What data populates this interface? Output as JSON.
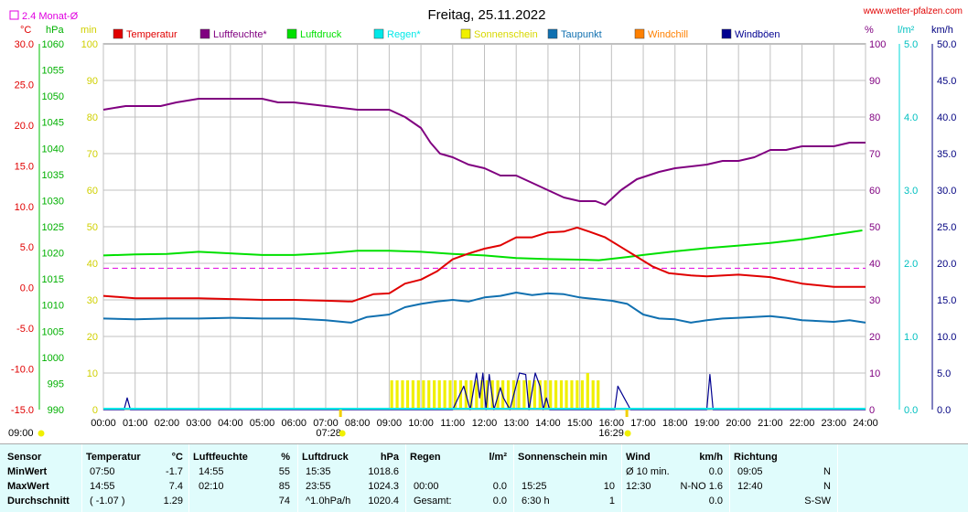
{
  "header": {
    "title": "Freitag, 25.11.2022",
    "website": "www.wetter-pfalzen.com",
    "monthly_avg_label": "2.4 Monat-Ø"
  },
  "colors": {
    "temperature": "#e00000",
    "humidity": "#800080",
    "pressure": "#00e000",
    "rain": "#00e8e8",
    "sunshine": "#f0f000",
    "dewpoint": "#1070b0",
    "windchill": "#ff8000",
    "gusts": "#000090",
    "monthly_avg": "#e000e0"
  },
  "chart_data": {
    "type": "line",
    "title": "Freitag, 25.11.2022",
    "x_tick_labels": [
      "00:00",
      "01:00",
      "02:00",
      "03:00",
      "04:00",
      "05:00",
      "06:00",
      "07:00",
      "08:00",
      "09:00",
      "10:00",
      "11:00",
      "12:00",
      "13:00",
      "14:00",
      "15:00",
      "16:00",
      "17:00",
      "18:00",
      "19:00",
      "20:00",
      "21:00",
      "22:00",
      "23:00",
      "24:00"
    ],
    "sunrise": "07:28",
    "sunset": "16:29",
    "legend": [
      {
        "label": "Temperatur",
        "color": "#e00000"
      },
      {
        "label": "Luftfeuchte*",
        "color": "#800080"
      },
      {
        "label": "Luftdruck",
        "color": "#00e000"
      },
      {
        "label": "Regen*",
        "color": "#00e8e8"
      },
      {
        "label": "Sonnenschein",
        "color": "#f0f000"
      },
      {
        "label": "Taupunkt",
        "color": "#1070b0"
      },
      {
        "label": "Windchill",
        "color": "#ff8000"
      },
      {
        "label": "Windböen",
        "color": "#000090"
      }
    ],
    "axes": {
      "temp": {
        "unit": "°C",
        "range": [
          -15,
          30
        ],
        "ticks": [
          "30.0",
          "25.0",
          "20.0",
          "15.0",
          "10.0",
          "5.0",
          "0.0",
          "-5.0",
          "-10.0",
          "-15.0"
        ]
      },
      "pressure": {
        "unit": "hPa",
        "range": [
          990,
          1060
        ],
        "ticks": [
          "1060",
          "1055",
          "1050",
          "1045",
          "1040",
          "1035",
          "1030",
          "1025",
          "1020",
          "1015",
          "1010",
          "1005",
          "1000",
          "995",
          "990"
        ]
      },
      "minutes": {
        "unit": "min",
        "range": [
          0,
          100
        ],
        "ticks": [
          "100",
          "90",
          "80",
          "70",
          "60",
          "50",
          "40",
          "30",
          "20",
          "10",
          "0"
        ]
      },
      "humidity": {
        "unit": "%",
        "range": [
          0,
          100
        ],
        "ticks": [
          "100",
          "90",
          "80",
          "70",
          "60",
          "50",
          "40",
          "30",
          "20",
          "10",
          "0"
        ]
      },
      "rain": {
        "unit": "l/m²",
        "range": [
          0,
          5
        ],
        "ticks": [
          "5.0",
          "4.0",
          "3.0",
          "2.0",
          "1.0",
          "0.0"
        ]
      },
      "wind": {
        "unit": "km/h",
        "range": [
          0,
          50
        ],
        "ticks": [
          "50.0",
          "45.0",
          "40.0",
          "35.0",
          "30.0",
          "25.0",
          "20.0",
          "15.0",
          "10.0",
          "5.0",
          "0.0"
        ]
      }
    },
    "monthly_avg_temp": 2.4,
    "series": [
      {
        "name": "Temperatur",
        "axis": "temp",
        "points": [
          [
            0,
            -1.0
          ],
          [
            1,
            -1.3
          ],
          [
            2,
            -1.3
          ],
          [
            3,
            -1.3
          ],
          [
            4,
            -1.4
          ],
          [
            5,
            -1.5
          ],
          [
            6,
            -1.5
          ],
          [
            7,
            -1.6
          ],
          [
            7.83,
            -1.7
          ],
          [
            8.5,
            -0.8
          ],
          [
            9,
            -0.7
          ],
          [
            9.5,
            0.5
          ],
          [
            10,
            1.0
          ],
          [
            10.5,
            2.0
          ],
          [
            11,
            3.5
          ],
          [
            11.5,
            4.2
          ],
          [
            12,
            4.8
          ],
          [
            12.5,
            5.2
          ],
          [
            13,
            6.2
          ],
          [
            13.5,
            6.2
          ],
          [
            14,
            6.8
          ],
          [
            14.5,
            6.9
          ],
          [
            14.92,
            7.4
          ],
          [
            15.3,
            6.9
          ],
          [
            15.8,
            6.2
          ],
          [
            16.3,
            5.0
          ],
          [
            16.8,
            3.8
          ],
          [
            17.3,
            2.6
          ],
          [
            17.8,
            1.8
          ],
          [
            18.5,
            1.5
          ],
          [
            19,
            1.4
          ],
          [
            20,
            1.6
          ],
          [
            21,
            1.3
          ],
          [
            22,
            0.5
          ],
          [
            23,
            0.1
          ],
          [
            24,
            0.1
          ]
        ]
      },
      {
        "name": "Luftfeuchte*",
        "axis": "humidity",
        "points": [
          [
            0,
            82
          ],
          [
            0.7,
            83
          ],
          [
            1.8,
            83
          ],
          [
            2.3,
            84
          ],
          [
            3,
            85
          ],
          [
            4,
            85
          ],
          [
            5,
            85
          ],
          [
            5.5,
            84
          ],
          [
            6,
            84
          ],
          [
            7,
            83
          ],
          [
            8,
            82
          ],
          [
            9,
            82
          ],
          [
            9.5,
            80
          ],
          [
            10,
            77
          ],
          [
            10.3,
            73
          ],
          [
            10.6,
            70
          ],
          [
            11,
            69
          ],
          [
            11.5,
            67
          ],
          [
            12,
            66
          ],
          [
            12.5,
            64
          ],
          [
            13,
            64
          ],
          [
            13.5,
            62
          ],
          [
            14,
            60
          ],
          [
            14.5,
            58
          ],
          [
            15,
            57
          ],
          [
            15.5,
            57
          ],
          [
            15.8,
            56
          ],
          [
            16.3,
            60
          ],
          [
            16.8,
            63
          ],
          [
            17.5,
            65
          ],
          [
            18,
            66
          ],
          [
            19,
            67
          ],
          [
            19.5,
            68
          ],
          [
            20,
            68
          ],
          [
            20.5,
            69
          ],
          [
            21,
            71
          ],
          [
            21.5,
            71
          ],
          [
            22,
            72
          ],
          [
            23,
            72
          ],
          [
            23.5,
            73
          ],
          [
            24,
            73
          ]
        ]
      },
      {
        "name": "Luftdruck",
        "axis": "pressure",
        "points": [
          [
            0,
            1019.5
          ],
          [
            1,
            1019.7
          ],
          [
            2,
            1019.8
          ],
          [
            3,
            1020.2
          ],
          [
            4,
            1019.9
          ],
          [
            5,
            1019.6
          ],
          [
            6,
            1019.6
          ],
          [
            7,
            1019.9
          ],
          [
            8,
            1020.4
          ],
          [
            9,
            1020.4
          ],
          [
            10,
            1020.2
          ],
          [
            11,
            1019.8
          ],
          [
            12,
            1019.5
          ],
          [
            13,
            1019.0
          ],
          [
            14,
            1018.8
          ],
          [
            15,
            1018.7
          ],
          [
            15.6,
            1018.6
          ],
          [
            16.5,
            1019.2
          ],
          [
            17,
            1019.6
          ],
          [
            18,
            1020.3
          ],
          [
            19,
            1020.9
          ],
          [
            20,
            1021.4
          ],
          [
            21,
            1021.9
          ],
          [
            22,
            1022.6
          ],
          [
            23,
            1023.5
          ],
          [
            23.9,
            1024.3
          ]
        ]
      },
      {
        "name": "Taupunkt",
        "axis": "temp",
        "points": [
          [
            0,
            -3.8
          ],
          [
            1,
            -3.9
          ],
          [
            2,
            -3.8
          ],
          [
            3,
            -3.8
          ],
          [
            4,
            -3.7
          ],
          [
            5,
            -3.8
          ],
          [
            6,
            -3.8
          ],
          [
            7,
            -4.0
          ],
          [
            7.8,
            -4.3
          ],
          [
            8.3,
            -3.6
          ],
          [
            9,
            -3.3
          ],
          [
            9.5,
            -2.4
          ],
          [
            10,
            -2.0
          ],
          [
            10.5,
            -1.7
          ],
          [
            11,
            -1.5
          ],
          [
            11.5,
            -1.7
          ],
          [
            12,
            -1.2
          ],
          [
            12.5,
            -1.0
          ],
          [
            13,
            -0.6
          ],
          [
            13.5,
            -0.9
          ],
          [
            14,
            -0.7
          ],
          [
            14.5,
            -0.8
          ],
          [
            15,
            -1.2
          ],
          [
            15.5,
            -1.4
          ],
          [
            16,
            -1.6
          ],
          [
            16.5,
            -2.0
          ],
          [
            17,
            -3.3
          ],
          [
            17.5,
            -3.8
          ],
          [
            18,
            -3.9
          ],
          [
            18.5,
            -4.3
          ],
          [
            19,
            -4.0
          ],
          [
            19.5,
            -3.8
          ],
          [
            20,
            -3.7
          ],
          [
            21,
            -3.5
          ],
          [
            21.5,
            -3.7
          ],
          [
            22,
            -4.0
          ],
          [
            23,
            -4.2
          ],
          [
            23.5,
            -4.0
          ],
          [
            24,
            -4.3
          ]
        ]
      },
      {
        "name": "Windböen",
        "axis": "wind",
        "points": [
          [
            0,
            0
          ],
          [
            0.65,
            0
          ],
          [
            0.75,
            1.6
          ],
          [
            0.85,
            0
          ],
          [
            11,
            0
          ],
          [
            11.35,
            3.2
          ],
          [
            11.55,
            0
          ],
          [
            11.75,
            5.0
          ],
          [
            11.85,
            1.6
          ],
          [
            11.95,
            5.0
          ],
          [
            12.05,
            0
          ],
          [
            12.15,
            4.8
          ],
          [
            12.3,
            0
          ],
          [
            12.5,
            3.0
          ],
          [
            12.6,
            1.6
          ],
          [
            12.8,
            0
          ],
          [
            13.1,
            5.0
          ],
          [
            13.3,
            4.8
          ],
          [
            13.4,
            0
          ],
          [
            13.6,
            5.0
          ],
          [
            13.75,
            3.2
          ],
          [
            13.85,
            0
          ],
          [
            13.95,
            1.6
          ],
          [
            14.05,
            0
          ],
          [
            16.1,
            0
          ],
          [
            16.2,
            3.2
          ],
          [
            16.4,
            1.6
          ],
          [
            16.6,
            0
          ],
          [
            19.0,
            0
          ],
          [
            19.1,
            4.8
          ],
          [
            19.2,
            0
          ],
          [
            24,
            0
          ]
        ]
      }
    ],
    "sunshine_minutes": [
      [
        9.08,
        8.0
      ],
      [
        9.25,
        8.0
      ],
      [
        9.42,
        8.0
      ],
      [
        9.58,
        8.0
      ],
      [
        9.75,
        8.0
      ],
      [
        9.92,
        8.0
      ],
      [
        10.08,
        8.0
      ],
      [
        10.25,
        8.0
      ],
      [
        10.42,
        8.0
      ],
      [
        10.58,
        8.0
      ],
      [
        10.75,
        8.0
      ],
      [
        10.92,
        8.0
      ],
      [
        11.08,
        8.0
      ],
      [
        11.25,
        8.0
      ],
      [
        11.42,
        8.0
      ],
      [
        11.58,
        8.0
      ],
      [
        11.75,
        8.0
      ],
      [
        11.92,
        8.0
      ],
      [
        12.08,
        8.0
      ],
      [
        12.25,
        8.0
      ],
      [
        12.42,
        8.0
      ],
      [
        12.58,
        8.0
      ],
      [
        12.75,
        8.0
      ],
      [
        12.92,
        8.0
      ],
      [
        13.08,
        8.0
      ],
      [
        13.25,
        8.0
      ],
      [
        13.42,
        8.0
      ],
      [
        13.58,
        8.0
      ],
      [
        13.75,
        8.0
      ],
      [
        13.92,
        8.0
      ],
      [
        14.08,
        8.0
      ],
      [
        14.25,
        8.0
      ],
      [
        14.42,
        8.0
      ],
      [
        14.58,
        8.0
      ],
      [
        14.75,
        8.0
      ],
      [
        14.92,
        8.0
      ],
      [
        15.08,
        8.0
      ],
      [
        15.25,
        10.0
      ],
      [
        15.42,
        8.0
      ],
      [
        15.58,
        8.0
      ]
    ],
    "rain": []
  },
  "stats": {
    "sensor": {
      "header": "Sensor",
      "rows": [
        "MinWert",
        "MaxWert",
        "Durchschnitt"
      ]
    },
    "temperature": {
      "header": "Temperatur",
      "unit": "°C",
      "rows": [
        [
          "07:50",
          "-1.7"
        ],
        [
          "14:55",
          "7.4"
        ],
        [
          "( -1.07 )",
          "1.29"
        ]
      ]
    },
    "humidity": {
      "header": "Luftfeuchte",
      "unit": "%",
      "rows": [
        [
          "14:55",
          "55"
        ],
        [
          "02:10",
          "85"
        ],
        [
          "",
          "74"
        ]
      ]
    },
    "pressure": {
      "header": "Luftdruck",
      "unit": "hPa",
      "rows": [
        [
          "15:35",
          "1018.6"
        ],
        [
          "23:55",
          "1024.3"
        ],
        [
          "^1.0hPa/h",
          "1020.4"
        ]
      ]
    },
    "rain": {
      "header": "Regen",
      "unit": "l/m²",
      "rows": [
        [
          "",
          ""
        ],
        [
          "00:00",
          "0.0"
        ],
        [
          "Gesamt:",
          "0.0"
        ]
      ]
    },
    "sunshine": {
      "header": "Sonnenschein min",
      "rows": [
        [
          "",
          ""
        ],
        [
          "15:25",
          "10"
        ],
        [
          "6:30 h",
          "1"
        ]
      ]
    },
    "wind": {
      "header": "Wind",
      "unit": "km/h",
      "rows": [
        [
          "Ø 10 min.",
          "0.0"
        ],
        [
          "12:30",
          "N-NO 1.6"
        ],
        [
          "",
          "0.0"
        ]
      ]
    },
    "direction": {
      "header": "Richtung",
      "rows": [
        [
          "09:05",
          "N"
        ],
        [
          "12:40",
          "N"
        ],
        [
          "",
          "S-SW"
        ]
      ]
    }
  }
}
